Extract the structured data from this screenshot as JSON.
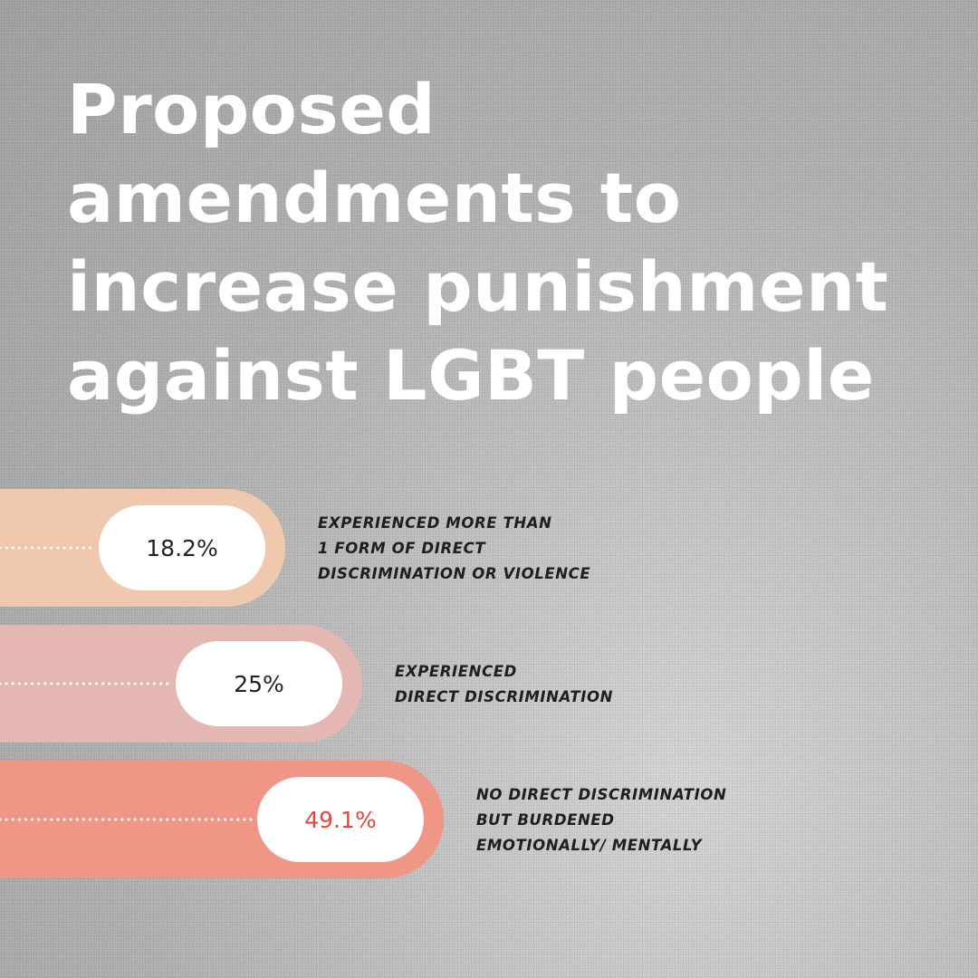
{
  "title_lines": [
    "Proposed",
    "amendments to",
    "increase punishment",
    "against LGBT people"
  ],
  "chart_data": {
    "type": "bar",
    "orientation": "horizontal",
    "categories": [
      "EXPERIENCED MORE THAN 1 FORM OF DIRECT DISCRIMINATION OR VIOLENCE",
      "EXPERIENCED DIRECT DISCRIMINATION",
      "NO DIRECT DISCRIMINATION BUT BURDENED EMOTIONALLY/ MENTALLY"
    ],
    "label_lines": [
      [
        "EXPERIENCED MORE THAN",
        "1 FORM OF DIRECT",
        "DISCRIMINATION OR VIOLENCE"
      ],
      [
        "EXPERIENCED",
        "DIRECT DISCRIMINATION"
      ],
      [
        "NO DIRECT DISCRIMINATION",
        "BUT BURDENED",
        "EMOTIONALLY/ MENTALLY"
      ]
    ],
    "values": [
      18.2,
      25,
      49.1
    ],
    "value_labels": [
      "18.2%",
      "25%",
      "49.1%"
    ],
    "colors": [
      "#f0c8ad",
      "#e5b7b3",
      "#f09686"
    ],
    "value_text_colors": [
      "#222222",
      "#222222",
      "#e8453c"
    ],
    "unit": "%",
    "legend": "none",
    "grid": false
  }
}
